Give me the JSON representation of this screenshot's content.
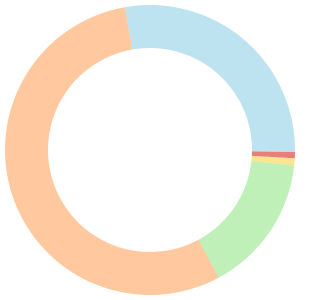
{
  "chart_data": {
    "type": "doughnut",
    "values": [
      28,
      0.7,
      0.8,
      15.4,
      55.1
    ],
    "colors": [
      "#bee3f0",
      "#ea7f7a",
      "#fde48e",
      "#bef0b8",
      "#ffc89e"
    ]
  }
}
